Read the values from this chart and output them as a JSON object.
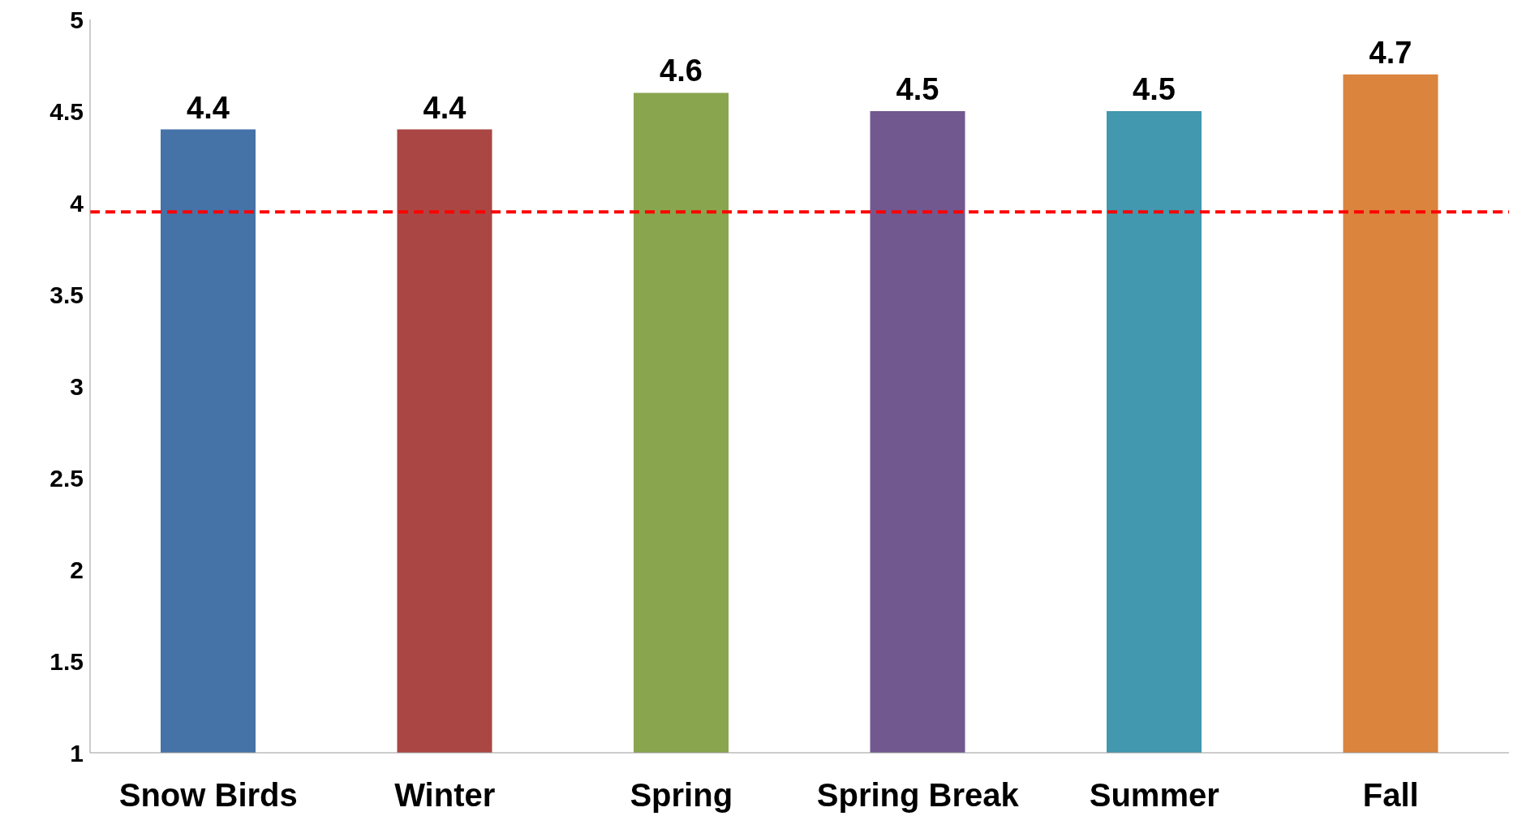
{
  "chart_data": {
    "type": "bar",
    "categories": [
      "Snow Birds",
      "Winter",
      "Spring",
      "Spring Break",
      "Summer",
      "Fall"
    ],
    "values": [
      4.4,
      4.4,
      4.6,
      4.5,
      4.5,
      4.7
    ],
    "colors": [
      "#4572a7",
      "#aa4643",
      "#89a54e",
      "#71588f",
      "#4198af",
      "#db843d"
    ],
    "ylim": [
      1,
      5
    ],
    "yticks": [
      1,
      1.5,
      2,
      2.5,
      3,
      3.5,
      4,
      4.5,
      5
    ],
    "grid": false,
    "legend": false,
    "data_labels": true,
    "ref_lines": [
      {
        "axis": "y",
        "value": 3.95,
        "color": "#ff0000",
        "line_style": "dashed"
      }
    ]
  }
}
